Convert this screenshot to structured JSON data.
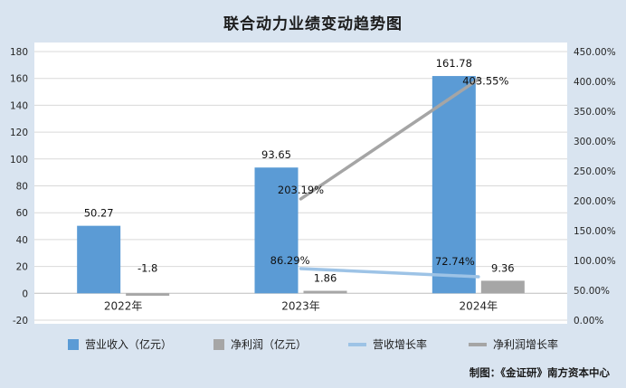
{
  "chart_data": {
    "type": "combo",
    "title": "联合动力业绩变动趋势图",
    "categories": [
      "2022年",
      "2023年",
      "2024年"
    ],
    "bar_series": [
      {
        "name": "营业收入（亿元）",
        "color": "#5b9bd5",
        "values": [
          50.27,
          93.65,
          161.78
        ]
      },
      {
        "name": "净利润（亿元）",
        "color": "#a6a6a6",
        "values": [
          -1.8,
          1.86,
          9.36
        ]
      }
    ],
    "line_series": [
      {
        "name": "营收增长率",
        "color": "#9dc3e6",
        "values": [
          null,
          86.29,
          72.74
        ]
      },
      {
        "name": "净利润增长率",
        "color": "#a5a5a5",
        "values": [
          null,
          203.19,
          403.55
        ]
      }
    ],
    "left_axis": {
      "min": -20,
      "max": 180,
      "step": 20
    },
    "right_axis": {
      "min": 0,
      "max": 450,
      "step": 50,
      "format": "percent"
    },
    "grid": "horizontal",
    "legend_position": "bottom",
    "footer": "制图：《金证研》南方资本中心"
  }
}
